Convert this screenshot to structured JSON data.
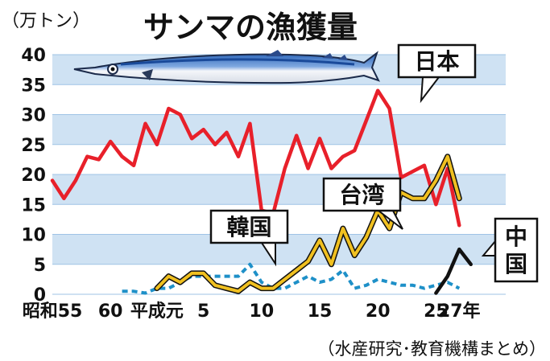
{
  "chart_data": {
    "type": "line",
    "title": "サンマの漁獲量",
    "ylabel": "（万トン）",
    "source": "（水産研究･教育機構まとめ）",
    "ylim": [
      0,
      40
    ],
    "yticks": [
      "0",
      "5",
      "10",
      "15",
      "20",
      "25",
      "30",
      "35",
      "40"
    ],
    "xlim": [
      55,
      94
    ],
    "x_tick_labels": [
      {
        "x": 55,
        "label": "昭和55"
      },
      {
        "x": 60,
        "label": "60"
      },
      {
        "x": 64,
        "label": "平成元"
      },
      {
        "x": 68,
        "label": "5"
      },
      {
        "x": 73,
        "label": "10"
      },
      {
        "x": 78,
        "label": "15"
      },
      {
        "x": 83,
        "label": "20"
      },
      {
        "x": 88,
        "label": "25"
      },
      {
        "x": 90,
        "label": "27年"
      }
    ],
    "series": [
      {
        "name": "日本",
        "color": "#e8202a",
        "style": "solid",
        "points": [
          [
            55,
            19
          ],
          [
            56,
            16
          ],
          [
            57,
            19
          ],
          [
            58,
            23
          ],
          [
            59,
            22.5
          ],
          [
            60,
            25.5
          ],
          [
            61,
            23
          ],
          [
            62,
            21.5
          ],
          [
            63,
            28.5
          ],
          [
            64,
            25
          ],
          [
            65,
            31
          ],
          [
            66,
            30
          ],
          [
            67,
            26
          ],
          [
            68,
            27.5
          ],
          [
            69,
            25
          ],
          [
            70,
            27
          ],
          [
            71,
            23
          ],
          [
            72,
            28.5
          ],
          [
            73,
            14
          ],
          [
            74,
            13.5
          ],
          [
            75,
            21
          ],
          [
            76,
            26.5
          ],
          [
            77,
            21
          ],
          [
            78,
            26
          ],
          [
            79,
            21
          ],
          [
            80,
            23
          ],
          [
            81,
            24
          ],
          [
            82,
            29
          ],
          [
            83,
            34
          ],
          [
            84,
            31
          ],
          [
            85,
            19.5
          ],
          [
            86,
            20.5
          ],
          [
            87,
            21.5
          ],
          [
            88,
            15
          ],
          [
            89,
            21
          ],
          [
            90,
            11.5
          ]
        ]
      },
      {
        "name": "台湾",
        "color": "#f0c020",
        "style": "solid-outlined",
        "points": [
          [
            64,
            1
          ],
          [
            65,
            3
          ],
          [
            66,
            2
          ],
          [
            67,
            3.5
          ],
          [
            68,
            3.5
          ],
          [
            69,
            1.5
          ],
          [
            70,
            1
          ],
          [
            71,
            0.5
          ],
          [
            72,
            2
          ],
          [
            73,
            1
          ],
          [
            74,
            1
          ],
          [
            75,
            2.5
          ],
          [
            76,
            4
          ],
          [
            77,
            5.5
          ],
          [
            78,
            9
          ],
          [
            79,
            5
          ],
          [
            80,
            11
          ],
          [
            81,
            6.5
          ],
          [
            82,
            9.5
          ],
          [
            83,
            14
          ],
          [
            84,
            11
          ],
          [
            85,
            17
          ],
          [
            86,
            16
          ],
          [
            87,
            16
          ],
          [
            88,
            19
          ],
          [
            89,
            23
          ],
          [
            90,
            16
          ]
        ]
      },
      {
        "name": "韓国",
        "color": "#1e90c8",
        "style": "dashed",
        "points": [
          [
            61,
            0.5
          ],
          [
            62,
            0.5
          ],
          [
            63,
            0.2
          ],
          [
            64,
            1
          ],
          [
            65,
            1
          ],
          [
            66,
            2
          ],
          [
            67,
            3
          ],
          [
            68,
            3
          ],
          [
            69,
            3
          ],
          [
            70,
            3
          ],
          [
            71,
            3
          ],
          [
            72,
            5
          ],
          [
            73,
            2
          ],
          [
            74,
            1
          ],
          [
            75,
            1
          ],
          [
            76,
            2
          ],
          [
            77,
            3
          ],
          [
            78,
            2
          ],
          [
            79,
            2.5
          ],
          [
            80,
            4
          ],
          [
            81,
            1
          ],
          [
            82,
            1.5
          ],
          [
            83,
            2.5
          ],
          [
            84,
            2
          ],
          [
            85,
            1.5
          ],
          [
            86,
            1.5
          ],
          [
            87,
            1
          ],
          [
            88,
            1.5
          ],
          [
            89,
            2
          ],
          [
            90,
            1
          ]
        ]
      },
      {
        "name": "中国",
        "color": "#111111",
        "style": "solid",
        "points": [
          [
            88,
            0.2
          ],
          [
            89,
            3
          ],
          [
            90,
            7.5
          ],
          [
            91,
            5
          ]
        ]
      }
    ]
  }
}
